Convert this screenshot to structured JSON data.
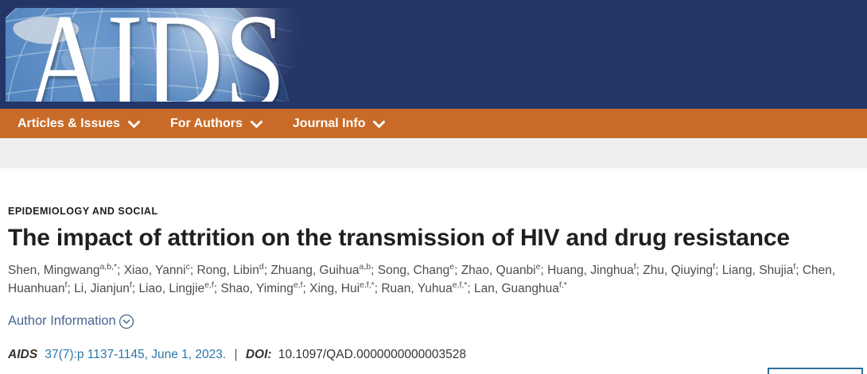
{
  "colors": {
    "banner_navy": "#243668",
    "nav_orange": "#c96b28",
    "gray_strip": "#efefef",
    "link_blue": "#47678f",
    "citation_blue": "#2878a8",
    "partial_box_border": "#2f6f93"
  },
  "banner": {
    "logo_text": "AIDS"
  },
  "nav": {
    "items": [
      {
        "id": "articles-issues",
        "label": "Articles & Issues"
      },
      {
        "id": "for-authors",
        "label": "For Authors"
      },
      {
        "id": "journal-info",
        "label": "Journal Info"
      }
    ]
  },
  "article": {
    "section_label": "EPIDEMIOLOGY AND SOCIAL",
    "title": "The impact of attrition on the transmission of HIV and drug resistance",
    "authors": [
      {
        "name": "Shen, Mingwang",
        "sup": "a,b,*"
      },
      {
        "name": "Xiao, Yanni",
        "sup": "c"
      },
      {
        "name": "Rong, Libin",
        "sup": "d"
      },
      {
        "name": "Zhuang, Guihua",
        "sup": "a,b"
      },
      {
        "name": "Song, Chang",
        "sup": "e"
      },
      {
        "name": "Zhao, Quanbi",
        "sup": "e"
      },
      {
        "name": "Huang, Jinghua",
        "sup": "f"
      },
      {
        "name": "Zhu, Qiuying",
        "sup": "f"
      },
      {
        "name": "Liang, Shujia",
        "sup": "f"
      },
      {
        "name": "Chen, Huanhuan",
        "sup": "f"
      },
      {
        "name": "Li, Jianjun",
        "sup": "f"
      },
      {
        "name": "Liao, Lingjie",
        "sup": "e,f"
      },
      {
        "name": "Shao, Yiming",
        "sup": "e,f"
      },
      {
        "name": "Xing, Hui",
        "sup": "e,f,*"
      },
      {
        "name": "Ruan, Yuhua",
        "sup": "e,f,*"
      },
      {
        "name": "Lan, Guanghua",
        "sup": "f,*"
      }
    ],
    "author_separator": "; ",
    "author_information_label": "Author Information",
    "citation": {
      "journal": "AIDS",
      "reference": "37(7):p 1137-1145, June 1, 2023.",
      "separator": "|",
      "doi_label": "DOI:",
      "doi_value": "10.1097/QAD.0000000000003528"
    }
  }
}
